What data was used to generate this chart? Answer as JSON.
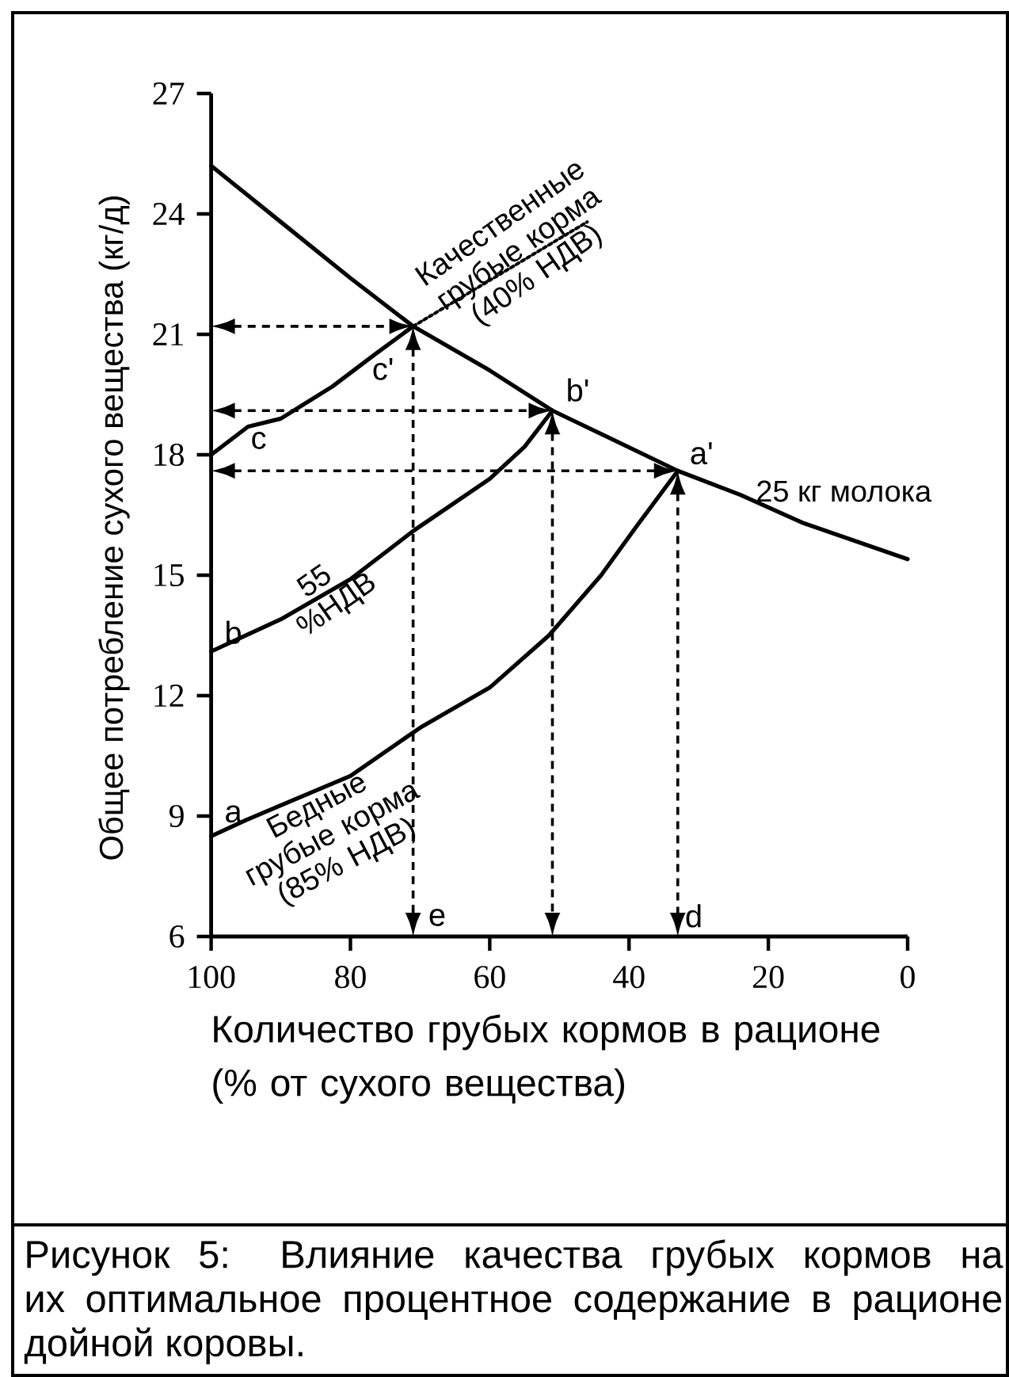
{
  "chart_data": {
    "type": "line",
    "xlabel": "Количество грубых кормов в рационе (% от сухого вещества)",
    "ylabel": "Общее потребление сухого вещества (кг/д)",
    "xlim": [
      100,
      0
    ],
    "xticks": [
      100,
      80,
      60,
      40,
      20,
      0
    ],
    "ylim": [
      6,
      27
    ],
    "yticks": [
      6,
      9,
      12,
      15,
      18,
      21,
      24,
      27
    ],
    "series": [
      {
        "name": "25 кг молока",
        "color": "#000000",
        "line_style": "solid",
        "x": [
          100,
          90,
          80,
          71,
          60,
          51,
          42,
          33,
          24,
          15,
          0
        ],
        "values": [
          25.2,
          23.8,
          22.4,
          21.2,
          20.1,
          19.1,
          18.35,
          17.6,
          17.0,
          16.3,
          15.4
        ]
      },
      {
        "name": "Качественные грубые корма (40% НДВ)",
        "color": "#000000",
        "line_style": "solid",
        "x": [
          100,
          94.7,
          90,
          82.6,
          76.5,
          71
        ],
        "values": [
          18.0,
          18.7,
          18.9,
          19.7,
          20.5,
          21.2
        ]
      },
      {
        "color": "#000000",
        "line_style": "dotted",
        "x": [
          71,
          46
        ],
        "values": [
          21.2,
          23.8
        ]
      },
      {
        "name": "55 %НДВ",
        "color": "#000000",
        "line_style": "solid",
        "x": [
          100,
          95,
          90,
          80,
          71,
          60,
          55,
          51
        ],
        "values": [
          13.1,
          13.5,
          13.9,
          14.9,
          16.1,
          17.4,
          18.2,
          19.1
        ]
      },
      {
        "name": "Бедные грубые корма (85% НДВ)",
        "color": "#000000",
        "line_style": "solid",
        "x": [
          100,
          95,
          80,
          70,
          60,
          51.5,
          44,
          39,
          33
        ],
        "values": [
          8.5,
          8.9,
          10.0,
          11.2,
          12.2,
          13.5,
          15.0,
          16.2,
          17.6
        ]
      }
    ],
    "annotations": [
      "Рисунок 5:  Влияние качества грубых кормов на их оптимальное процентное содержание в рационе дойной коровы.",
      {
        "text": "a",
        "x": 100,
        "y": 8.5
      },
      {
        "text": "b",
        "x": 100,
        "y": 13.1
      },
      {
        "text": "c",
        "x": 100,
        "y": 18
      },
      {
        "text": "c'",
        "x": 71,
        "y": 21.2
      },
      {
        "text": "b'",
        "x": 51,
        "y": 19.1
      },
      {
        "text": "a'",
        "x": 33,
        "y": 17.6
      },
      "d",
      "e"
    ]
  }
}
